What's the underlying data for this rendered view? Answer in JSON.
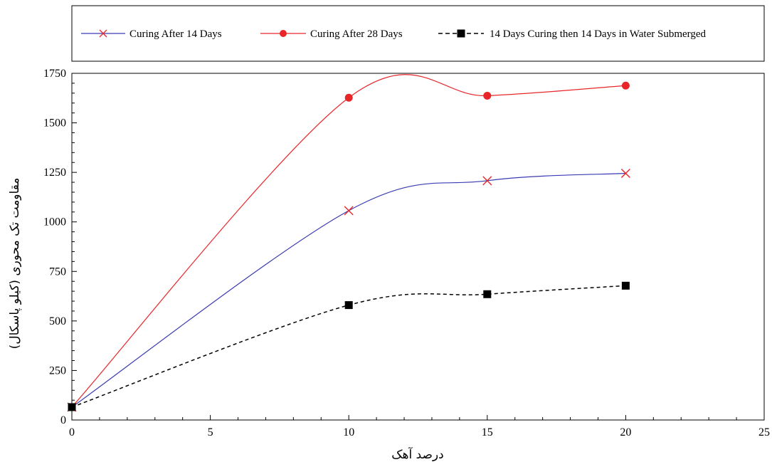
{
  "chart_data": {
    "type": "line",
    "title": "",
    "xlabel": "درصد آهک",
    "ylabel": "مقاومت تک محوری (کیلو پاسکال)",
    "xlim": [
      0,
      25
    ],
    "ylim": [
      0,
      1750
    ],
    "x_ticks": [
      0,
      5,
      10,
      15,
      20,
      25
    ],
    "y_ticks": [
      0,
      250,
      500,
      750,
      1000,
      1250,
      1500,
      1750
    ],
    "grid": false,
    "legend_position": "top",
    "series": [
      {
        "name": "Curing After 14 Days",
        "color": "#3b3bb3",
        "marker": "x",
        "marker_color": "#e8262a",
        "line_style": "solid",
        "x": [
          0,
          10,
          15,
          20
        ],
        "y": [
          65,
          1057,
          1208,
          1245
        ]
      },
      {
        "name": "Curing After 28 Days",
        "color": "#e8262a",
        "marker": "circle",
        "marker_color": "#e8262a",
        "line_style": "solid",
        "x": [
          0,
          10,
          15,
          20
        ],
        "y": [
          65,
          1627,
          1637,
          1688
        ]
      },
      {
        "name": "14 Days Curing then 14 Days in Water Submerged",
        "color": "#000000",
        "marker": "square",
        "marker_color": "#000000",
        "line_style": "dashed",
        "x": [
          0,
          10,
          15,
          20
        ],
        "y": [
          65,
          580,
          635,
          678
        ]
      }
    ]
  }
}
